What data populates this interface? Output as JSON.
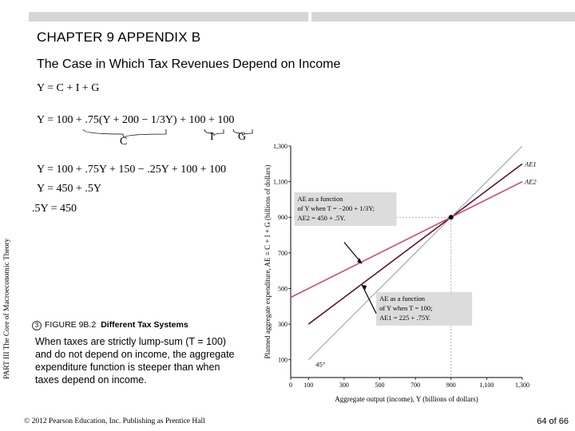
{
  "header": {
    "chapter": "CHAPTER 9 APPENDIX B",
    "subtitle": "The Case in Which Tax Revenues Depend on Income"
  },
  "sidebar_text": "PART III  The Core of Macroeconomic Theory",
  "equations": {
    "e1": "Y = C + I + G",
    "e2": "Y = 100 + .75(Y + 200 − 1/3Y) + 100 + 100",
    "brace_c": "C",
    "brace_i": "I",
    "brace_g": "G",
    "e3": "Y = 100 + .75Y + 150 − .25Y + 100 + 100",
    "e4": "Y = 450 + .5Y",
    "e5": ".5Y = 450"
  },
  "figure": {
    "icon": "3",
    "label": "FIGURE 9B.2",
    "title": "Different Tax Systems",
    "description": "When taxes are strictly lump-sum (T = 100) and do not depend on income, the aggregate expenditure function is steeper than when taxes depend on income."
  },
  "footer": {
    "copyright": "© 2012 Pearson Education, Inc. Publishing as Prentice Hall",
    "page": "64 of 66"
  },
  "chart_data": {
    "type": "line",
    "xlabel": "Aggregate output (income), Y (billions of dollars)",
    "ylabel": "Planned aggregate expenditure, AE ≡ C + I + G (billions of dollars)",
    "x_ticks": [
      0,
      100,
      300,
      500,
      700,
      900,
      1100,
      1300
    ],
    "y_ticks": [
      100,
      300,
      500,
      700,
      900,
      1100,
      1300
    ],
    "xlim": [
      0,
      1300
    ],
    "ylim": [
      0,
      1300
    ],
    "series": [
      {
        "name": "AE1",
        "intercept": 225,
        "slope": 0.75,
        "x": [
          100,
          1300
        ],
        "y": [
          300,
          1200
        ],
        "color": "#5a1530"
      },
      {
        "name": "AE2",
        "intercept": 450,
        "slope": 0.5,
        "x": [
          0,
          1300
        ],
        "y": [
          450,
          1100
        ],
        "color": "#d1447a"
      },
      {
        "name": "45°",
        "x": [
          100,
          1300
        ],
        "y": [
          100,
          1300
        ],
        "color": "#888888"
      }
    ],
    "equilibrium": {
      "x": 900,
      "y": 900
    },
    "annotations": {
      "ae2_box": [
        "AE as a function",
        "of Y when T = −200 + 1/3Y;",
        "AE2 = 450 + .5Y."
      ],
      "ae1_box": [
        "AE as a function",
        "of Y when T = 100;",
        "AE1 = 225 + .75Y."
      ],
      "line45": "45°"
    },
    "colors": {
      "box_fill": "#dcdcdc",
      "dash": "#999999"
    }
  }
}
